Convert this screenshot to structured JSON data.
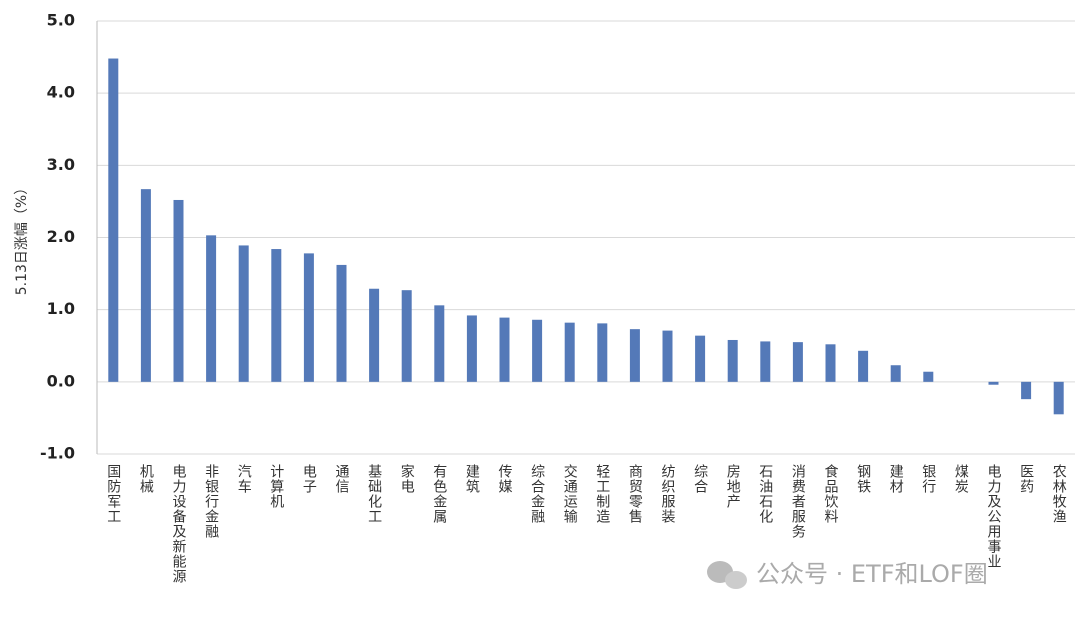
{
  "chart_data": {
    "type": "bar",
    "y_label": "5.13日涨幅（%）",
    "categories": [
      "国防军工",
      "机械",
      "电力设备及新能源",
      "非银行金融",
      "汽车",
      "计算机",
      "电子",
      "通信",
      "基础化工",
      "家电",
      "有色金属",
      "建筑",
      "传媒",
      "综合金融",
      "交通运输",
      "轻工制造",
      "商贸零售",
      "纺织服装",
      "综合",
      "房地产",
      "石油石化",
      "消费者服务",
      "食品饮料",
      "钢铁",
      "建材",
      "银行",
      "煤炭",
      "电力及公用事业",
      "医药",
      "农林牧渔"
    ],
    "values": [
      4.48,
      2.67,
      2.52,
      2.03,
      1.89,
      1.84,
      1.78,
      1.62,
      1.29,
      1.27,
      1.06,
      0.92,
      0.89,
      0.86,
      0.82,
      0.81,
      0.73,
      0.71,
      0.64,
      0.58,
      0.56,
      0.55,
      0.52,
      0.43,
      0.23,
      0.14,
      0.0,
      -0.04,
      -0.24,
      -0.45
    ],
    "color": "#5479b8",
    "ylim": [
      -1,
      5
    ],
    "yticks": [
      {
        "value": -1,
        "label": "-1.0"
      },
      {
        "value": 0,
        "label": "0.0"
      },
      {
        "value": 1,
        "label": "1.0"
      },
      {
        "value": 2,
        "label": "2.0"
      },
      {
        "value": 3,
        "label": "3.0"
      },
      {
        "value": 4,
        "label": "4.0"
      },
      {
        "value": 5,
        "label": "5.0"
      }
    ],
    "grid": true,
    "watermark": "公众号 · ETF和LOF圈"
  }
}
